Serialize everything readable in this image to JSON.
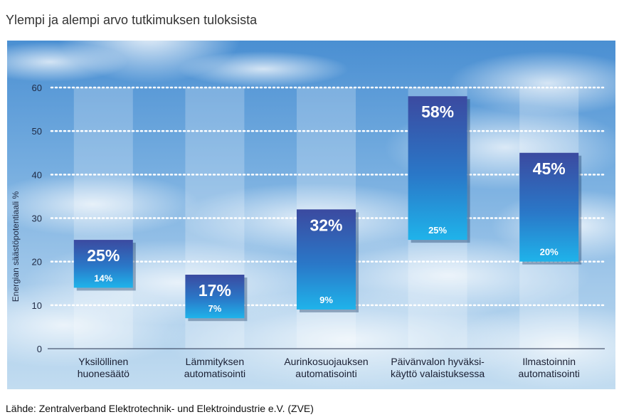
{
  "title": "Ylempi ja alempi arvo tutkimuksen tuloksista",
  "source": "Lähde: Zentralverband Elektrotechnik- und Elektroindustrie e.V. (ZVE)",
  "chart_data": {
    "type": "bar",
    "subtype": "floating-range",
    "ylabel": "Energian säästöpotentiaali %",
    "ylim": [
      0,
      60
    ],
    "yticks": [
      0,
      10,
      20,
      30,
      40,
      50,
      60
    ],
    "grid": "dotted horizontal",
    "categories": [
      [
        "Yksilöllinen",
        "huonesäätö"
      ],
      [
        "Lämmityksen",
        "automatisointi"
      ],
      [
        "Aurinkosuojauksen",
        "automatisointi"
      ],
      [
        "Päivänvalon hyväksi-",
        "käyttö valaistuksessa"
      ],
      [
        "Ilmastoinnin",
        "automatisointi"
      ]
    ],
    "upper": [
      25,
      17,
      32,
      58,
      45
    ],
    "lower": [
      14,
      7,
      9,
      25,
      20
    ],
    "upper_labels": [
      "25%",
      "17%",
      "32%",
      "58%",
      "45%"
    ],
    "lower_labels": [
      "14%",
      "7%",
      "9%",
      "25%",
      "20%"
    ],
    "colors": {
      "bar_top": "#3b4aa0",
      "bar_bottom": "#1fb3ea",
      "grid": "#ffffff",
      "text": "#ffffff"
    }
  }
}
